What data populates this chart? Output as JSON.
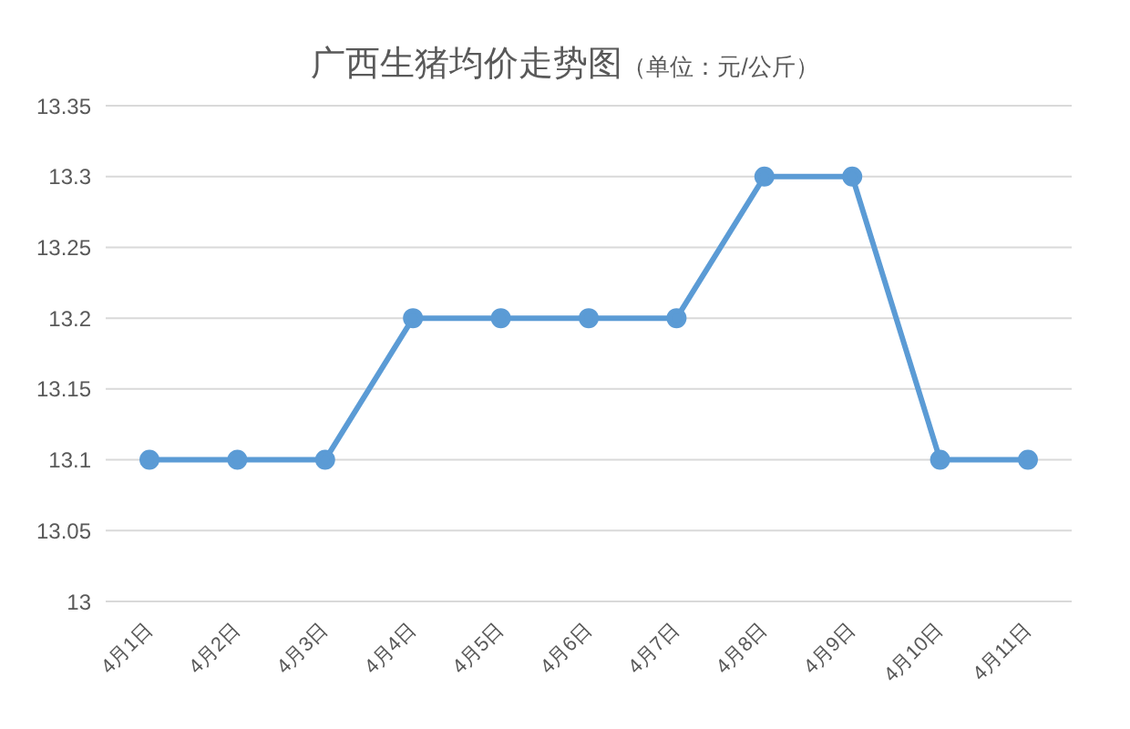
{
  "chart_data": {
    "type": "line",
    "title": "广西生猪均价走势图",
    "subtitle": "（单位：元/公斤）",
    "categories": [
      "4月1日",
      "4月2日",
      "4月3日",
      "4月4日",
      "4月5日",
      "4月6日",
      "4月7日",
      "4月8日",
      "4月9日",
      "4月10日",
      "4月11日"
    ],
    "series": [
      {
        "color": "#5b9bd5",
        "values": [
          13.1,
          13.1,
          13.1,
          13.2,
          13.2,
          13.2,
          13.2,
          13.3,
          13.3,
          13.1,
          13.1
        ]
      }
    ],
    "ylim": [
      13,
      13.35
    ],
    "yticks": [
      13,
      13.05,
      13.1,
      13.15,
      13.2,
      13.25,
      13.3,
      13.35
    ],
    "grid": "y",
    "marker": "circle",
    "line_style": "solid",
    "legend": false
  }
}
